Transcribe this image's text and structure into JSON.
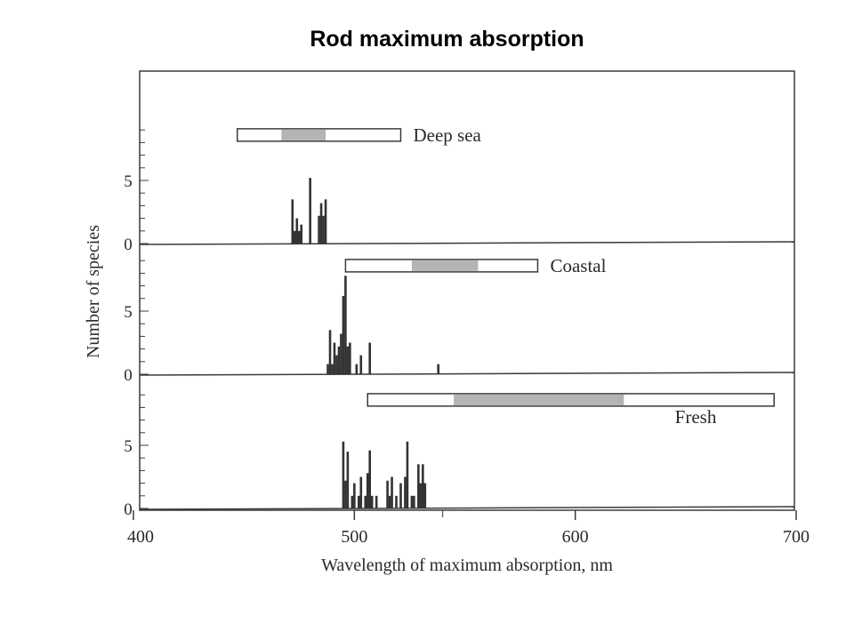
{
  "title": "Rod maximum absorption",
  "colors": {
    "ink": "#2a2a2a",
    "bar": "#333333",
    "range_fill": "#b4b4b4",
    "frame": "#3a3a3a"
  },
  "chart_data": {
    "type": "bar",
    "title": "Rod maximum absorption",
    "xlabel": "Wavelength of maximum absorption, nm",
    "ylabel": "Number of species",
    "xlim": [
      400,
      700
    ],
    "x_ticks": [
      400,
      500,
      600,
      700
    ],
    "y_ticks": [
      0,
      5
    ],
    "ylim": [
      0,
      9
    ],
    "grid": false,
    "legend": "none",
    "panels": [
      {
        "name": "Deep sea",
        "range_bar": {
          "start": 447,
          "end": 521,
          "shade_start": 467,
          "shade_end": 487
        },
        "bars": [
          {
            "x": 472,
            "value": 3.5
          },
          {
            "x": 473,
            "value": 1
          },
          {
            "x": 474,
            "value": 2
          },
          {
            "x": 475,
            "value": 1
          },
          {
            "x": 476,
            "value": 1.5
          },
          {
            "x": 480,
            "value": 5.2
          },
          {
            "x": 484,
            "value": 2.2
          },
          {
            "x": 485,
            "value": 3.2
          },
          {
            "x": 486,
            "value": 2.2
          },
          {
            "x": 487,
            "value": 3.5
          }
        ]
      },
      {
        "name": "Coastal",
        "range_bar": {
          "start": 496,
          "end": 583,
          "shade_start": 526,
          "shade_end": 556
        },
        "bars": [
          {
            "x": 488,
            "value": 0.8
          },
          {
            "x": 489,
            "value": 3.5
          },
          {
            "x": 490,
            "value": 0.8
          },
          {
            "x": 491,
            "value": 2.5
          },
          {
            "x": 492,
            "value": 1.5
          },
          {
            "x": 493,
            "value": 2.2
          },
          {
            "x": 494,
            "value": 3.2
          },
          {
            "x": 495,
            "value": 6.2
          },
          {
            "x": 496,
            "value": 7.8
          },
          {
            "x": 497,
            "value": 2.2
          },
          {
            "x": 498,
            "value": 2.5
          },
          {
            "x": 501,
            "value": 0.8
          },
          {
            "x": 503,
            "value": 1.5
          },
          {
            "x": 507,
            "value": 2.5
          },
          {
            "x": 538,
            "value": 0.8
          }
        ]
      },
      {
        "name": "Fresh",
        "range_bar": {
          "start": 506,
          "end": 690,
          "shade_start": 545,
          "shade_end": 622
        },
        "bars": [
          {
            "x": 495,
            "value": 5.3
          },
          {
            "x": 496,
            "value": 2.2
          },
          {
            "x": 497,
            "value": 4.5
          },
          {
            "x": 499,
            "value": 1
          },
          {
            "x": 500,
            "value": 2
          },
          {
            "x": 502,
            "value": 1
          },
          {
            "x": 503,
            "value": 2.5
          },
          {
            "x": 505,
            "value": 1
          },
          {
            "x": 506,
            "value": 2.8
          },
          {
            "x": 507,
            "value": 4.6
          },
          {
            "x": 508,
            "value": 1
          },
          {
            "x": 510,
            "value": 1
          },
          {
            "x": 515,
            "value": 2.2
          },
          {
            "x": 516,
            "value": 1
          },
          {
            "x": 517,
            "value": 2.5
          },
          {
            "x": 519,
            "value": 1
          },
          {
            "x": 521,
            "value": 2
          },
          {
            "x": 523,
            "value": 2.5
          },
          {
            "x": 524,
            "value": 5.3
          },
          {
            "x": 526,
            "value": 1
          },
          {
            "x": 527,
            "value": 1
          },
          {
            "x": 529,
            "value": 3.5
          },
          {
            "x": 530,
            "value": 2
          },
          {
            "x": 531,
            "value": 3.5
          },
          {
            "x": 532,
            "value": 2
          }
        ]
      }
    ]
  }
}
